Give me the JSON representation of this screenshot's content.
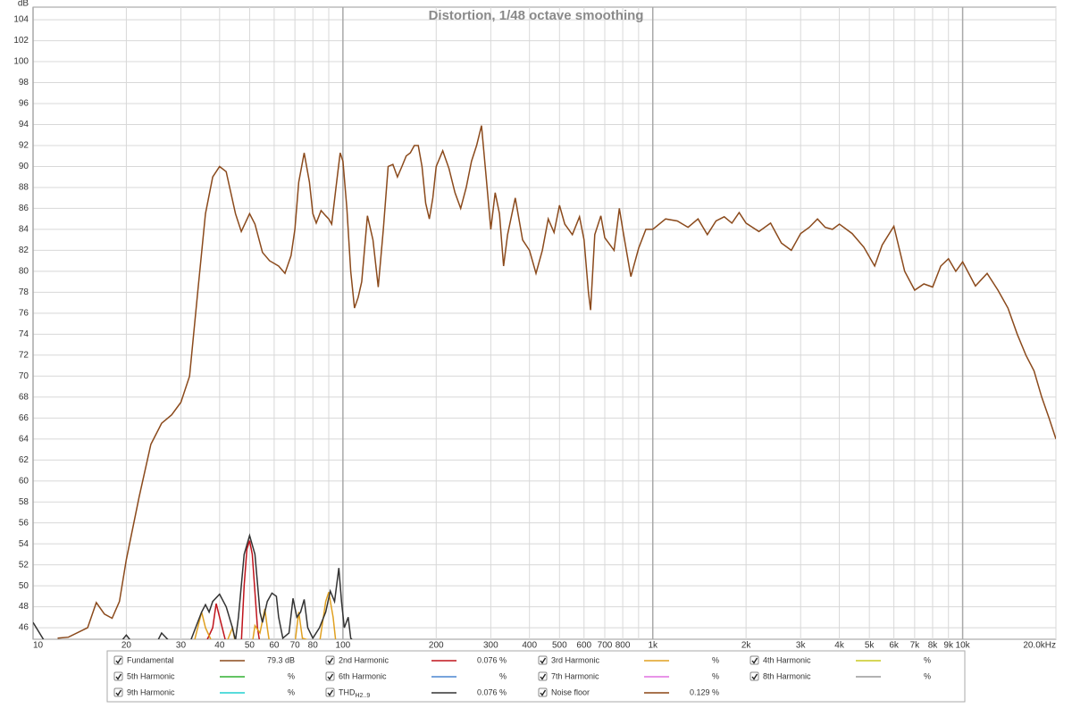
{
  "chart_data": {
    "type": "line",
    "title": "Distortion, 1/48 octave smoothing",
    "y_label": "dB",
    "log_x": true,
    "grid": true,
    "xlim": [
      10,
      20000
    ],
    "ylim": [
      44.9,
      105.2
    ],
    "xticks": [
      10,
      20,
      30,
      40,
      50,
      60,
      70,
      80,
      100,
      200,
      300,
      400,
      500,
      600,
      700,
      800,
      {
        "value": 1000,
        "label": "1k"
      },
      {
        "value": 2000,
        "label": "2k"
      },
      {
        "value": 3000,
        "label": "3k"
      },
      {
        "value": 4000,
        "label": "4k"
      },
      {
        "value": 5000,
        "label": "5k"
      },
      {
        "value": 6000,
        "label": "6k"
      },
      {
        "value": 7000,
        "label": "7k"
      },
      {
        "value": 8000,
        "label": "8k"
      },
      {
        "value": 9000,
        "label": "9k"
      },
      {
        "value": 10000,
        "label": "10k"
      },
      {
        "value": 20000,
        "label": "20.0kHz"
      }
    ],
    "xminor_ticks": [
      90,
      900
    ],
    "yticks": [
      46,
      48,
      50,
      52,
      54,
      56,
      58,
      60,
      62,
      64,
      66,
      68,
      70,
      72,
      74,
      76,
      78,
      80,
      82,
      84,
      86,
      88,
      90,
      92,
      94,
      96,
      98,
      100,
      102,
      104
    ],
    "series": [
      {
        "name": "Fundamental",
        "color": "#8b4a1c",
        "legend_value": "79.3 dB",
        "x": [
          12,
          13,
          15,
          16,
          17,
          18,
          19,
          20,
          22,
          24,
          26,
          28,
          30,
          32,
          34,
          36,
          38,
          40,
          42,
          45,
          47,
          50,
          52,
          55,
          58,
          62,
          65,
          68,
          70,
          72,
          75,
          78,
          80,
          82,
          85,
          88,
          90,
          92,
          95,
          98,
          100,
          103,
          106,
          109,
          112,
          115,
          120,
          125,
          130,
          135,
          140,
          145,
          150,
          155,
          160,
          165,
          170,
          175,
          180,
          185,
          190,
          195,
          200,
          210,
          220,
          230,
          240,
          250,
          260,
          270,
          280,
          290,
          300,
          310,
          320,
          330,
          340,
          360,
          380,
          400,
          420,
          440,
          460,
          480,
          500,
          520,
          550,
          580,
          600,
          620,
          630,
          650,
          680,
          700,
          750,
          780,
          800,
          850,
          900,
          950,
          1000,
          1100,
          1200,
          1300,
          1400,
          1500,
          1600,
          1700,
          1800,
          1900,
          2000,
          2200,
          2400,
          2600,
          2800,
          3000,
          3200,
          3400,
          3600,
          3800,
          4000,
          4400,
          4800,
          5200,
          5500,
          6000,
          6500,
          7000,
          7500,
          8000,
          8500,
          9000,
          9500,
          10000,
          11000,
          12000,
          13000,
          14000,
          15000,
          16000,
          17000,
          18000,
          19000,
          20000
        ],
        "values": [
          45.0,
          45.1,
          46,
          48.4,
          47.3,
          46.9,
          48.5,
          52.5,
          58.5,
          63.5,
          65.5,
          66.3,
          67.5,
          70,
          78,
          85.5,
          89,
          90,
          89.5,
          85.5,
          83.8,
          85.5,
          84.5,
          81.8,
          81,
          80.5,
          79.8,
          81.5,
          84,
          88.5,
          91.3,
          88.5,
          85.5,
          84.6,
          85.8,
          85.3,
          85,
          84.5,
          88,
          91.3,
          90.5,
          86,
          80,
          76.5,
          77.5,
          79,
          85.3,
          83,
          78.5,
          84,
          90,
          90.2,
          89,
          90,
          91,
          91.3,
          92,
          92,
          90,
          86.5,
          85,
          87,
          90,
          91.5,
          89.8,
          87.5,
          86,
          88,
          90.5,
          92,
          93.9,
          89,
          84,
          87.5,
          85.5,
          80.5,
          83.5,
          87,
          83,
          82,
          79.8,
          82,
          85,
          83.7,
          86.3,
          84.5,
          83.5,
          85.2,
          83,
          78,
          76.3,
          83.5,
          85.3,
          83.2,
          82,
          86,
          84,
          79.5,
          82.2,
          84,
          84,
          85,
          84.8,
          84.2,
          85,
          83.5,
          84.8,
          85.2,
          84.6,
          85.6,
          84.6,
          83.8,
          84.6,
          82.7,
          82,
          83.6,
          84.2,
          85,
          84.2,
          84,
          84.5,
          83.6,
          82.3,
          80.5,
          82.5,
          84.3,
          80,
          78.2,
          78.8,
          78.5,
          80.5,
          81.2,
          80,
          80.9,
          78.6,
          79.8,
          78.2,
          76.5,
          74,
          72,
          70.5,
          68,
          66,
          64
        ]
      },
      {
        "name": "2nd Harmonic",
        "color": "#c0141c",
        "legend_value": "0.076 %",
        "x": [
          36,
          38,
          39,
          40,
          42,
          47,
          48,
          49,
          50,
          51,
          53,
          54
        ],
        "values": [
          44.5,
          46,
          48.3,
          47,
          44.5,
          44.5,
          50,
          53.5,
          54.3,
          53,
          46,
          44.5
        ]
      },
      {
        "name": "3rd Harmonic",
        "color": "#e0a020",
        "legend_value": "%",
        "x": [
          33,
          35,
          36,
          38,
          42,
          44,
          45,
          51,
          52,
          54,
          56,
          57,
          58,
          70,
          72,
          74,
          84,
          88,
          90,
          93,
          95
        ],
        "values": [
          44.5,
          47.5,
          46,
          44.5,
          44.5,
          46,
          44.5,
          44.5,
          46.2,
          45.5,
          47.8,
          46,
          44.5,
          44.5,
          47.5,
          45,
          44.5,
          48.5,
          49.4,
          47,
          44.5
        ]
      },
      {
        "name": "4th Harmonic",
        "color": "#c8c820",
        "legend_value": "%"
      },
      {
        "name": "5th Harmonic",
        "color": "#30b030",
        "legend_value": "%"
      },
      {
        "name": "6th Harmonic",
        "color": "#4a86d0",
        "legend_value": "%"
      },
      {
        "name": "7th Harmonic",
        "color": "#e070e0",
        "legend_value": "%"
      },
      {
        "name": "8th Harmonic",
        "color": "#999999",
        "legend_value": "%"
      },
      {
        "name": "9th Harmonic",
        "color": "#20d0d0",
        "legend_value": "%"
      },
      {
        "name": "THD",
        "name_subscript": "H2..9",
        "color": "#333333",
        "legend_value": "0.076 %",
        "x": [
          10,
          11,
          19,
          20,
          21,
          25,
          26,
          28,
          32,
          35,
          36,
          37,
          38,
          40,
          42,
          44,
          45,
          46,
          48,
          50,
          52,
          54,
          55,
          57,
          59,
          61,
          62,
          64,
          67,
          69,
          71,
          73,
          75,
          77,
          80,
          84,
          88,
          91,
          94,
          97,
          99,
          101,
          104,
          106,
          110
        ],
        "values": [
          46.5,
          44.5,
          44.5,
          45.3,
          44.5,
          44.5,
          45.5,
          44.5,
          44.5,
          47.5,
          48.2,
          47.5,
          48.5,
          49.2,
          48,
          46,
          44.8,
          47,
          53,
          54.8,
          53,
          47.5,
          46.5,
          48.5,
          49.3,
          49,
          47,
          45,
          45.5,
          48.8,
          47,
          47.5,
          48.7,
          46,
          45,
          46,
          47.5,
          49.5,
          48.5,
          51.7,
          48.5,
          46,
          47,
          45,
          44.5
        ]
      },
      {
        "name": "Noise floor",
        "color": "#8b4513",
        "legend_value": "0.129 %"
      }
    ]
  }
}
